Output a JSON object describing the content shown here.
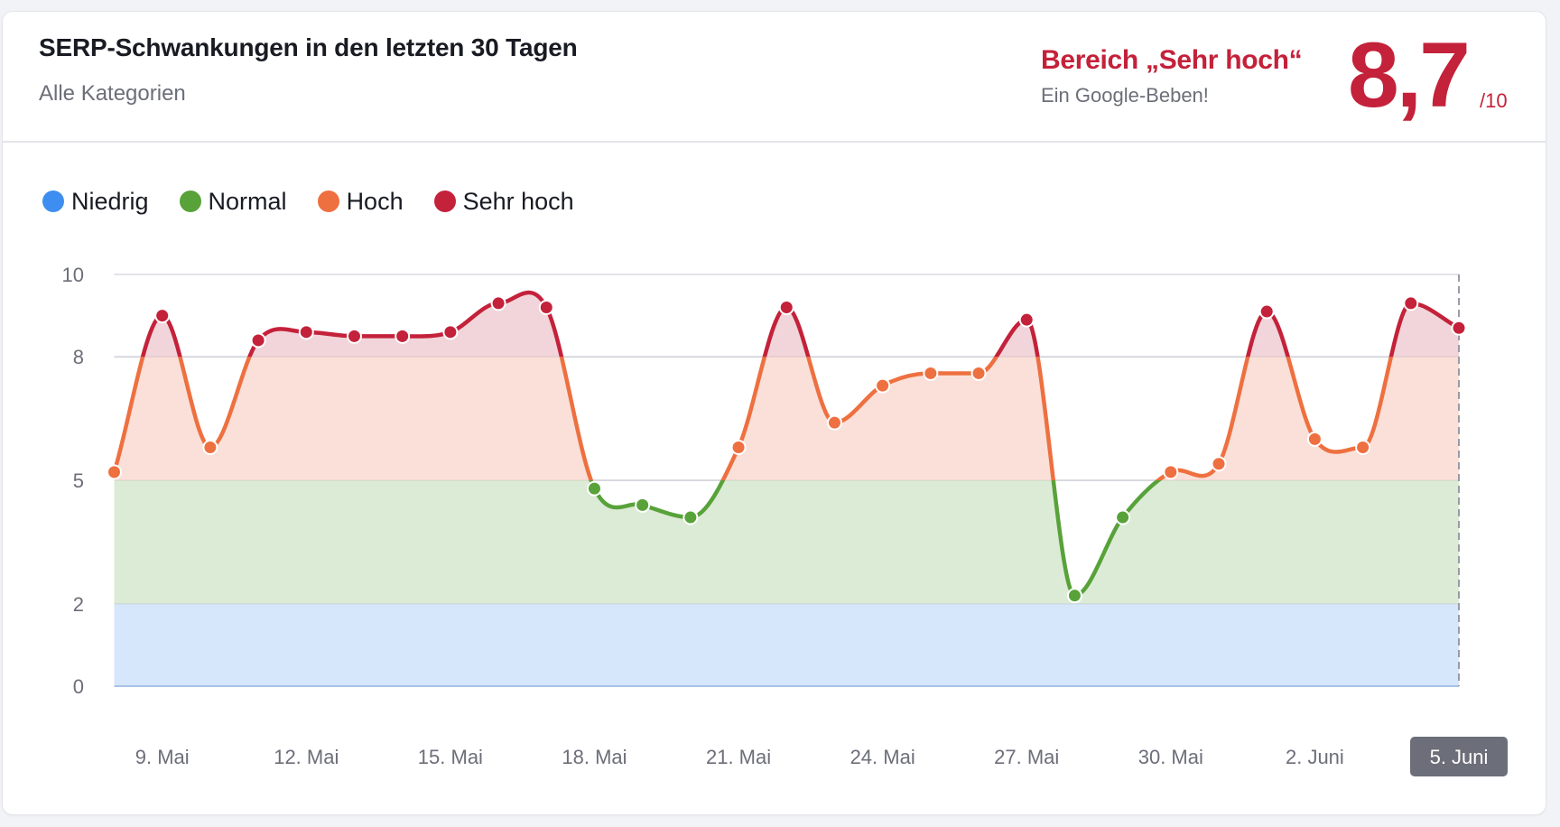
{
  "header": {
    "title": "SERP-Schwankungen in den letzten 30 Tagen",
    "subtitle": "Alle Kategorien",
    "range_label": "Bereich „Sehr hoch“",
    "range_description": "Ein Google-Beben!",
    "score": "8,7",
    "score_max": "/10"
  },
  "legend": [
    {
      "label": "Niedrig",
      "color": "#3d8ef0"
    },
    {
      "label": "Normal",
      "color": "#58a23a"
    },
    {
      "label": "Hoch",
      "color": "#ee7040"
    },
    {
      "label": "Sehr hoch",
      "color": "#c4213a"
    }
  ],
  "colors": {
    "low_fill": "#d6e6fb",
    "normal_fill": "#dcebd6",
    "high_fill": "#fae0d8",
    "very_high_fill": "#f1d5da",
    "grid": "#e2e3ea",
    "badge_bg": "#6c6e79"
  },
  "chart_data": {
    "type": "line",
    "title": "SERP-Schwankungen in den letzten 30 Tagen",
    "subtitle": "Alle Kategorien",
    "xlabel": "",
    "ylabel": "",
    "ylim": [
      0,
      10
    ],
    "yticks": [
      0,
      2,
      5,
      8,
      10
    ],
    "grid": true,
    "legend_position": "top-left",
    "bands": [
      {
        "name": "Niedrig",
        "from": 0,
        "to": 2,
        "color": "#3d8ef0"
      },
      {
        "name": "Normal",
        "from": 2,
        "to": 5,
        "color": "#58a23a"
      },
      {
        "name": "Hoch",
        "from": 5,
        "to": 8,
        "color": "#ee7040"
      },
      {
        "name": "Sehr hoch",
        "from": 8,
        "to": 10,
        "color": "#c4213a"
      }
    ],
    "x": [
      "8. Mai",
      "9. Mai",
      "10. Mai",
      "11. Mai",
      "12. Mai",
      "13. Mai",
      "14. Mai",
      "15. Mai",
      "16. Mai",
      "17. Mai",
      "18. Mai",
      "19. Mai",
      "20. Mai",
      "21. Mai",
      "22. Mai",
      "23. Mai",
      "24. Mai",
      "25. Mai",
      "26. Mai",
      "27. Mai",
      "28. Mai",
      "29. Mai",
      "30. Mai",
      "31. Mai",
      "1. Juni",
      "2. Juni",
      "3. Juni",
      "4. Juni",
      "5. Juni"
    ],
    "series": [
      {
        "name": "SERP-Schwankung",
        "values": [
          5.2,
          9.0,
          5.8,
          8.4,
          8.6,
          8.5,
          8.5,
          8.6,
          9.3,
          9.2,
          4.8,
          4.4,
          4.1,
          5.8,
          9.2,
          6.4,
          7.3,
          7.6,
          7.6,
          8.9,
          2.2,
          4.1,
          5.2,
          5.4,
          9.1,
          6.0,
          5.8,
          9.3,
          8.7
        ]
      }
    ],
    "xtick_labels": [
      "9. Mai",
      "12. Mai",
      "15. Mai",
      "18. Mai",
      "21. Mai",
      "24. Mai",
      "27. Mai",
      "30. Mai",
      "2. Juni",
      "5. Juni"
    ],
    "xtick_indices": [
      1,
      4,
      7,
      10,
      13,
      16,
      19,
      22,
      25,
      28
    ],
    "highlighted_x": "5. Juni"
  }
}
